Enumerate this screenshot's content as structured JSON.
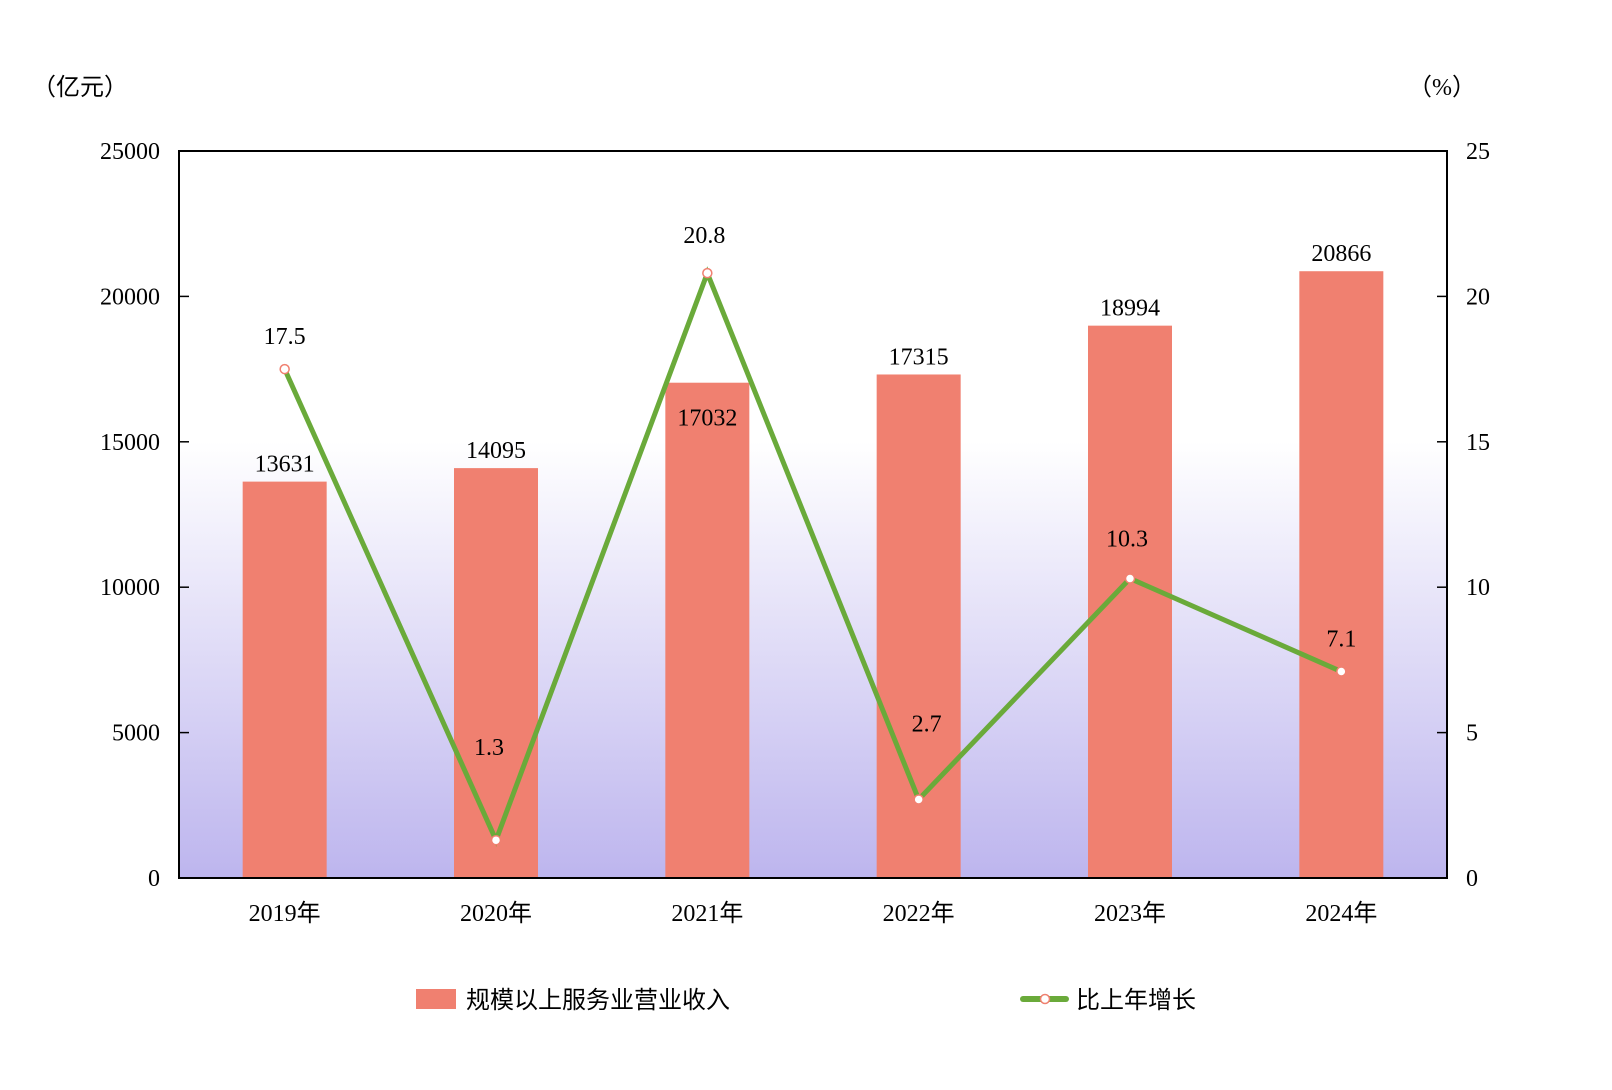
{
  "chart_data": {
    "type": "bar+line",
    "categories": [
      "2019年",
      "2020年",
      "2021年",
      "2022年",
      "2023年",
      "2024年"
    ],
    "series": [
      {
        "name": "规模以上服务业营业收入",
        "type": "bar",
        "axis": "left",
        "values": [
          13631,
          14095,
          17032,
          17315,
          18994,
          20866
        ],
        "labels": [
          "13631",
          "14095",
          "17032",
          "17315",
          "18994",
          "20866"
        ],
        "color": "#f08070"
      },
      {
        "name": "比上年增长",
        "type": "line",
        "axis": "right",
        "values": [
          17.5,
          1.3,
          20.8,
          2.7,
          10.3,
          7.1
        ],
        "labels": [
          "17.5",
          "1.3",
          "20.8",
          "2.7",
          "10.3",
          "7.1"
        ],
        "color": "#6aaa3a"
      }
    ],
    "y_left": {
      "unit_label": "（亿元）",
      "lim": [
        0,
        25000
      ],
      "ticks": [
        "0",
        "5000",
        "10000",
        "15000",
        "20000",
        "25000"
      ]
    },
    "y_right": {
      "unit_label": "（%）",
      "lim": [
        0,
        25
      ],
      "ticks": [
        "0",
        "5",
        "10",
        "15",
        "20",
        "25"
      ]
    },
    "grid": false,
    "legend": "bottom",
    "background_gradient": [
      "#ffffff",
      "#bdb5ee"
    ]
  }
}
